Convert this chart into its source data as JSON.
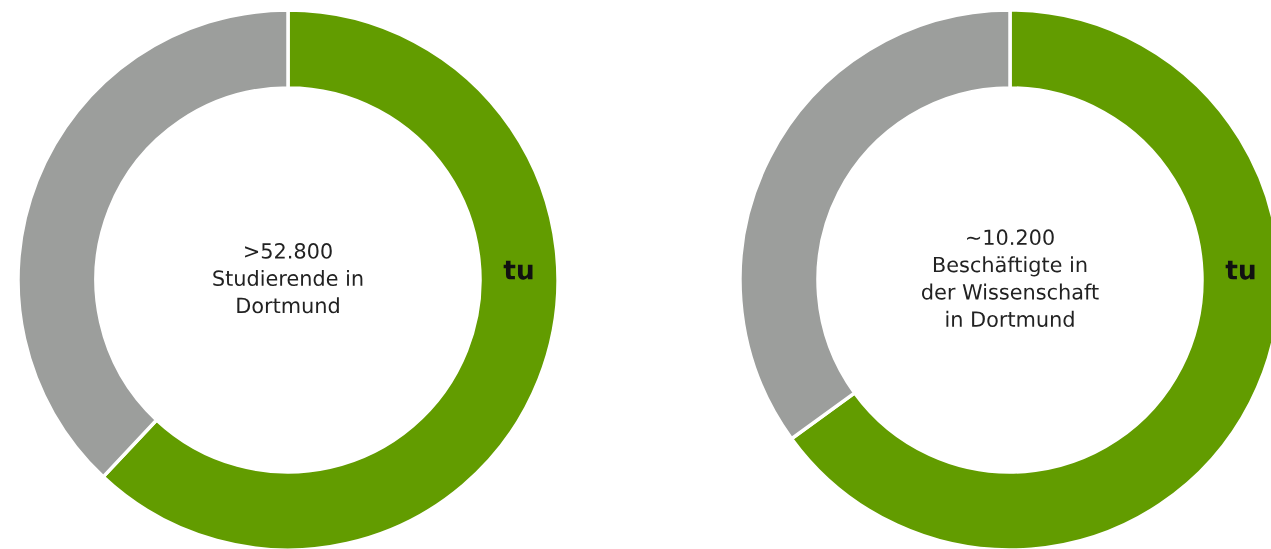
{
  "chart_data": [
    {
      "type": "donut",
      "title": ">52.800\nStudierende in\nDortmund",
      "categories": [
        "tu",
        null
      ],
      "values": [
        62,
        38
      ],
      "colors": [
        "#629c00",
        "#9c9e9c"
      ]
    },
    {
      "type": "donut",
      "title": "~10.200\nBeschäftigte in\nder Wissenschaft\nin Dortmund",
      "categories": [
        "tu",
        null
      ],
      "values": [
        65,
        35
      ],
      "colors": [
        "#629c00",
        "#9c9e9c"
      ]
    }
  ]
}
